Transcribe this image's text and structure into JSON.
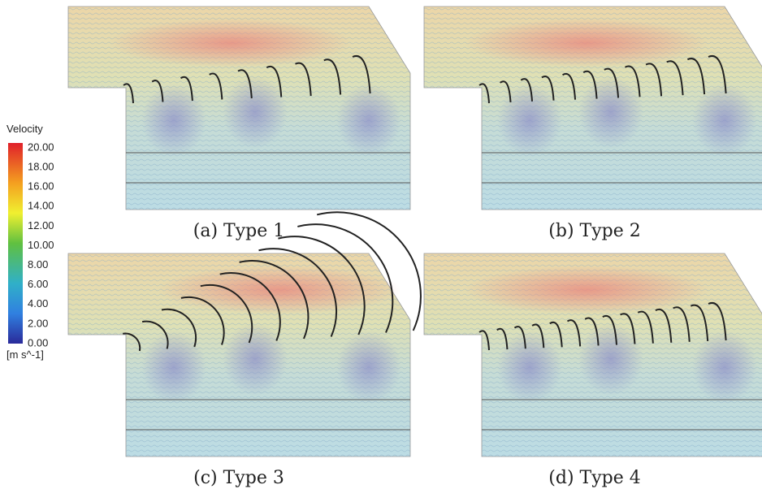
{
  "legend": {
    "title": "Velocity",
    "ticks": [
      "20.00",
      "18.00",
      "16.00",
      "14.00",
      "12.00",
      "10.00",
      "8.00",
      "6.00",
      "4.00",
      "2.00",
      "0.00"
    ],
    "unit": "[m s^-1]"
  },
  "panels": [
    {
      "caption": "(a) Type 1"
    },
    {
      "caption": "(b) Type 2"
    },
    {
      "caption": "(c) Type 3"
    },
    {
      "caption": "(d) Type 4"
    }
  ]
}
